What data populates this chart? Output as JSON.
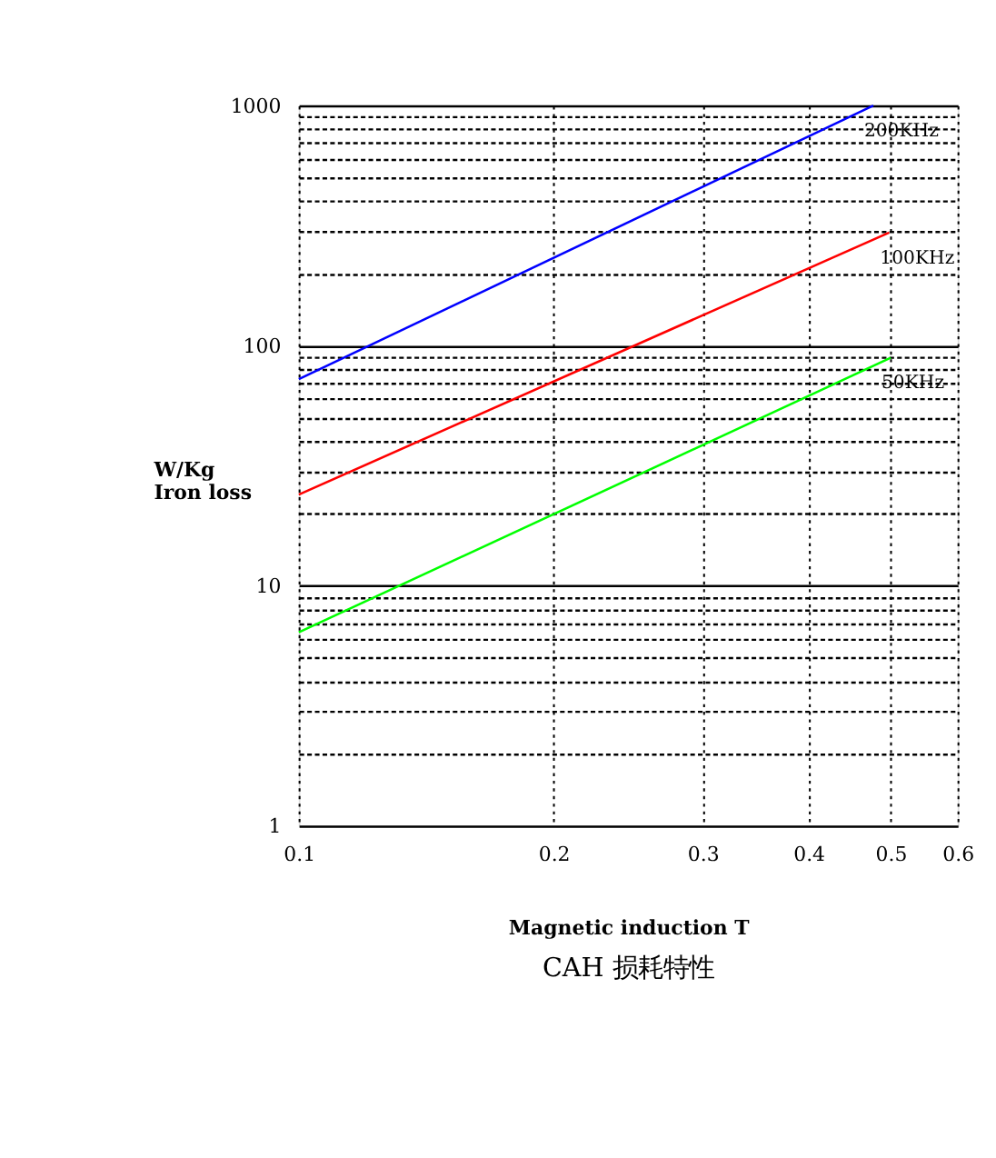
{
  "chart_data": {
    "type": "line",
    "title": "CAH 损耗特性",
    "xlabel": "Magnetic induction T",
    "ylabel": "W/Kg\nIron loss",
    "log": "xy",
    "grid": true,
    "xlim": [
      0.1,
      0.6
    ],
    "xticks": [
      0.1,
      0.2,
      0.3,
      0.4,
      0.5,
      0.6
    ],
    "ylim": [
      1,
      1000
    ],
    "yticks": [
      1,
      {
        "value": 2,
        "label": null
      },
      {
        "value": 3,
        "label": null
      },
      {
        "value": 4,
        "label": null
      },
      {
        "value": 5,
        "label": null
      },
      {
        "value": 6,
        "label": null
      },
      {
        "value": 7,
        "label": null
      },
      {
        "value": 8,
        "label": null
      },
      {
        "value": 9,
        "label": null
      },
      10,
      {
        "value": 20,
        "label": null
      },
      {
        "value": 30,
        "label": null
      },
      {
        "value": 40,
        "label": null
      },
      {
        "value": 50,
        "label": null
      },
      {
        "value": 60,
        "label": null
      },
      {
        "value": 70,
        "label": null
      },
      {
        "value": 80,
        "label": null
      },
      {
        "value": 90,
        "label": null
      },
      100,
      {
        "value": 200,
        "label": null
      },
      {
        "value": 300,
        "label": null
      },
      {
        "value": 400,
        "label": null
      },
      {
        "value": 500,
        "label": null
      },
      {
        "value": 600,
        "label": null
      },
      {
        "value": 700,
        "label": null
      },
      {
        "value": 800,
        "label": null
      },
      {
        "value": 900,
        "label": null
      },
      1000
    ],
    "series": [
      {
        "name": "200KHz",
        "color": "#0000ff",
        "x": [
          0.1,
          0.477
        ],
        "values": [
          72.6,
          1000
        ]
      },
      {
        "name": "100KHz",
        "color": "#ff0000",
        "x": [
          0.1,
          0.498
        ],
        "values": [
          24,
          296
        ]
      },
      {
        "name": "50KHz",
        "color": "#00ff00",
        "x": [
          0.1,
          0.5
        ],
        "values": [
          6.4,
          89
        ]
      }
    ]
  }
}
